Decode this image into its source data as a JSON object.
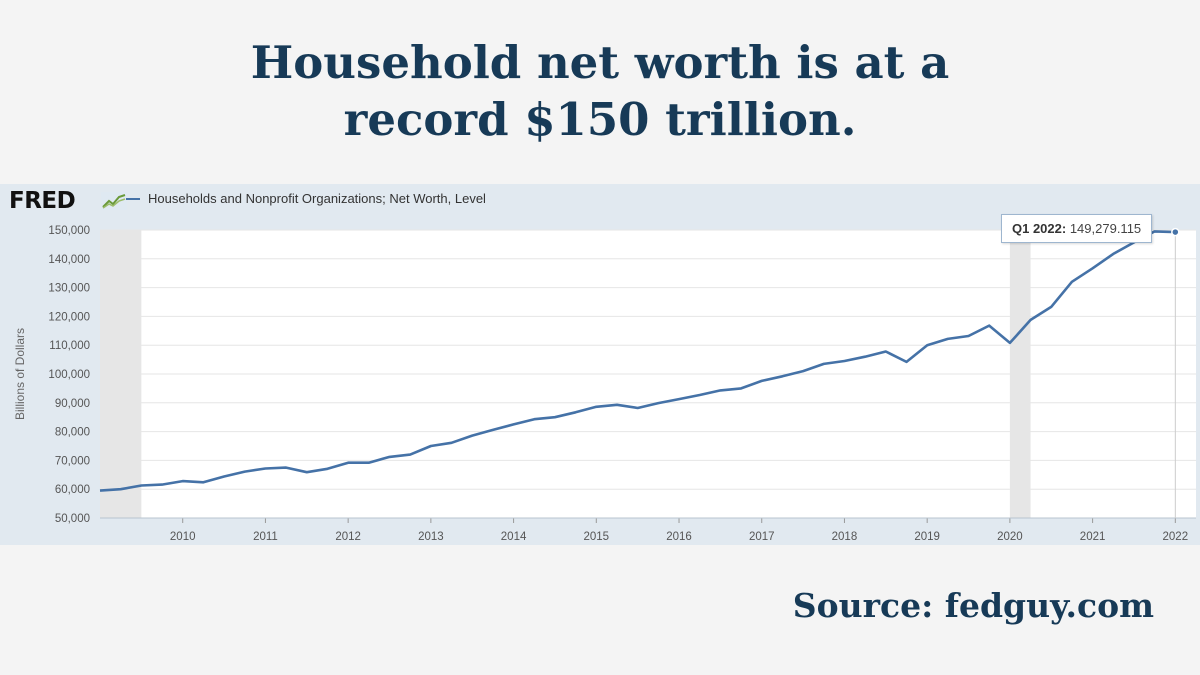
{
  "headline": {
    "line1": "Household net worth is at a",
    "line2": "record $150 trillion."
  },
  "logo": {
    "text": "FRED",
    "icon": "chart-line-icon"
  },
  "source": "Source: fedguy.com",
  "tooltip": {
    "label": "Q1 2022:",
    "value": "149,279.115"
  },
  "colors": {
    "headline": "#173a57",
    "series": "#4572a7",
    "recession": "#e6e6e6",
    "panel": "#e1e9f0"
  },
  "chart_data": {
    "type": "line",
    "title": "",
    "legend": "Households and Nonprofit Organizations; Net Worth, Level",
    "ylabel": "Billions of Dollars",
    "xlabel": "",
    "ylim": [
      50000,
      150000
    ],
    "xlim": [
      2009.0,
      2022.25
    ],
    "yticks": [
      50000,
      60000,
      70000,
      80000,
      90000,
      100000,
      110000,
      120000,
      130000,
      140000,
      150000
    ],
    "ytick_labels": [
      "50,000",
      "60,000",
      "70,000",
      "80,000",
      "90,000",
      "100,000",
      "110,000",
      "120,000",
      "130,000",
      "140,000",
      "150,000"
    ],
    "xticks": [
      2010,
      2011,
      2012,
      2013,
      2014,
      2015,
      2016,
      2017,
      2018,
      2019,
      2020,
      2021,
      2022
    ],
    "xtick_labels": [
      "2010",
      "2011",
      "2012",
      "2013",
      "2014",
      "2015",
      "2016",
      "2017",
      "2018",
      "2019",
      "2020",
      "2021",
      "2022"
    ],
    "recessions": [
      [
        2009.0,
        2009.5
      ],
      [
        2020.0,
        2020.25
      ]
    ],
    "series": [
      {
        "name": "Households and Nonprofit Organizations; Net Worth, Level",
        "x": [
          2009.0,
          2009.25,
          2009.5,
          2009.75,
          2010.0,
          2010.25,
          2010.5,
          2010.75,
          2011.0,
          2011.25,
          2011.5,
          2011.75,
          2012.0,
          2012.25,
          2012.5,
          2012.75,
          2013.0,
          2013.25,
          2013.5,
          2013.75,
          2014.0,
          2014.25,
          2014.5,
          2014.75,
          2015.0,
          2015.25,
          2015.5,
          2015.75,
          2016.0,
          2016.25,
          2016.5,
          2016.75,
          2017.0,
          2017.25,
          2017.5,
          2017.75,
          2018.0,
          2018.25,
          2018.5,
          2018.75,
          2019.0,
          2019.25,
          2019.5,
          2019.75,
          2020.0,
          2020.25,
          2020.5,
          2020.75,
          2021.0,
          2021.25,
          2021.5,
          2021.75,
          2022.0
        ],
        "values": [
          59500,
          60000,
          61300,
          61600,
          62800,
          62400,
          64400,
          66100,
          67200,
          67500,
          65900,
          67100,
          69200,
          69200,
          71200,
          72000,
          75000,
          76100,
          78600,
          80600,
          82500,
          84300,
          85000,
          86700,
          88600,
          89300,
          88200,
          89900,
          91300,
          92700,
          94300,
          95000,
          97600,
          99200,
          101000,
          103500,
          104500,
          106000,
          107800,
          104200,
          110000,
          112200,
          113200,
          116800,
          110800,
          118800,
          123300,
          132000,
          136700,
          141700,
          145700,
          149500,
          149279
        ]
      }
    ]
  }
}
